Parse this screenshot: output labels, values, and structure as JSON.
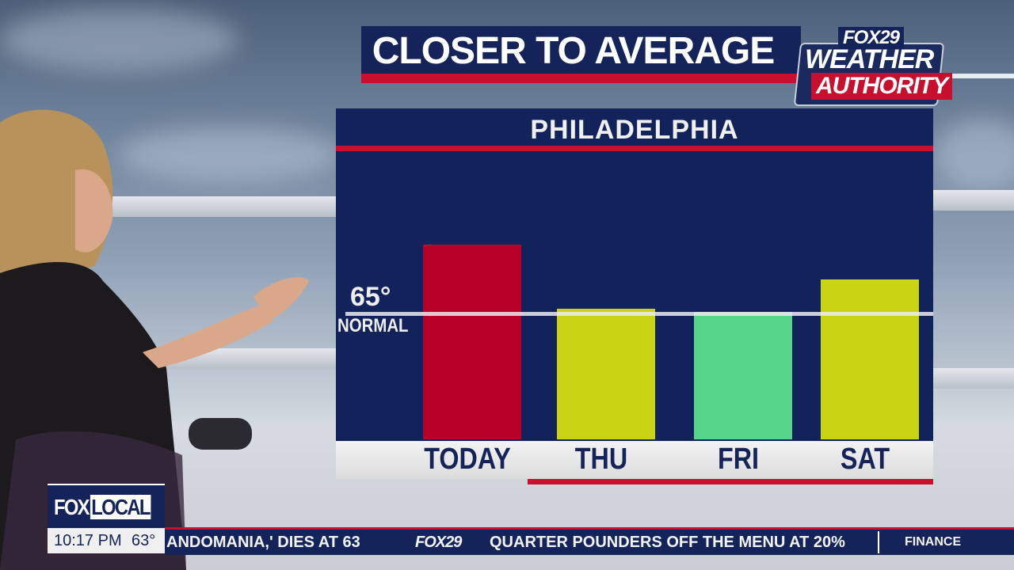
{
  "header": {
    "title": "CLOSER TO AVERAGE"
  },
  "logo": {
    "brand": "FOX29",
    "line1": "WEATHER",
    "line2": "AUTHORITY"
  },
  "chart_data": {
    "type": "bar",
    "title": "PHILADELPHIA",
    "categories": [
      "TODAY",
      "THU",
      "FRI",
      "SAT"
    ],
    "values_relative_to_normal": [
      1.55,
      1.04,
      1.01,
      1.27
    ],
    "colors": [
      "#b5002a",
      "#c8d414",
      "#55d68a",
      "#c8d414"
    ],
    "reference_line": {
      "value_label": "65°",
      "label": "NORMAL",
      "value": 65
    },
    "grid": false
  },
  "bug": {
    "channel": "FOX",
    "channel_suffix": "LOCAL",
    "time": "10:17 PM",
    "temperature": "63°"
  },
  "ticker": {
    "items": [
      "ANDOMANIA,' DIES AT 63",
      "FOX29",
      "QUARTER POUNDERS OFF THE MENU AT 20%"
    ],
    "section": "FINANCE"
  },
  "colors": {
    "navy": "#12225a",
    "red": "#c8102e"
  }
}
